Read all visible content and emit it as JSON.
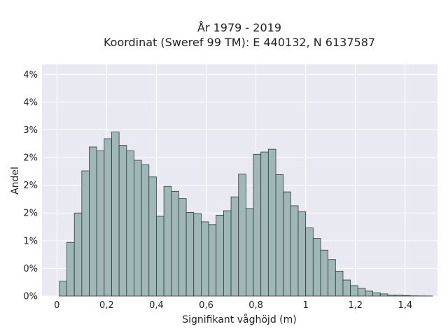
{
  "chart_data": {
    "type": "bar",
    "title": "År 1979 - 2019",
    "subtitle": "Koordinat (Sweref 99 TM): E 440132, N 6137587",
    "xlabel": "Signifikant våghöjd (m)",
    "ylabel": "Andel",
    "xlim": [
      -0.06,
      1.53
    ],
    "ylim": [
      0,
      0.0418
    ],
    "x_ticks": [
      {
        "value": 0,
        "label": "0"
      },
      {
        "value": 0.2,
        "label": "0,2"
      },
      {
        "value": 0.4,
        "label": "0,4"
      },
      {
        "value": 0.6,
        "label": "0,6"
      },
      {
        "value": 0.8,
        "label": "0,8"
      },
      {
        "value": 1.0,
        "label": "1"
      },
      {
        "value": 1.2,
        "label": "1,2"
      },
      {
        "value": 1.4,
        "label": "1,4"
      }
    ],
    "y_ticks": [
      {
        "value": 0.0,
        "label": "0%"
      },
      {
        "value": 0.005,
        "label": "0%"
      },
      {
        "value": 0.01,
        "label": "1%"
      },
      {
        "value": 0.015,
        "label": "2%"
      },
      {
        "value": 0.02,
        "label": "2%"
      },
      {
        "value": 0.025,
        "label": "2%"
      },
      {
        "value": 0.03,
        "label": "3%"
      },
      {
        "value": 0.035,
        "label": "4%"
      },
      {
        "value": 0.04,
        "label": "4%"
      }
    ],
    "grid": true,
    "bar_color": "#9fb7b6",
    "bar_edge_color": "#2f3a3a",
    "background_color": "#e8e9f1",
    "bin_width": 0.03,
    "bins_start": 0.01,
    "values": [
      0.0027,
      0.0097,
      0.015,
      0.0226,
      0.0269,
      0.0262,
      0.0284,
      0.0296,
      0.0272,
      0.0262,
      0.0245,
      0.0237,
      0.0215,
      0.0144,
      0.0198,
      0.0189,
      0.0176,
      0.0151,
      0.0149,
      0.0134,
      0.0129,
      0.0146,
      0.0154,
      0.0179,
      0.022,
      0.0158,
      0.0256,
      0.026,
      0.0265,
      0.0219,
      0.0188,
      0.0163,
      0.0152,
      0.0123,
      0.0104,
      0.0083,
      0.0066,
      0.0045,
      0.0029,
      0.0019,
      0.0014,
      0.0009,
      0.0006,
      0.0004,
      0.0002,
      0.0002,
      0.0001,
      5e-05,
      3e-05,
      2e-05
    ]
  }
}
